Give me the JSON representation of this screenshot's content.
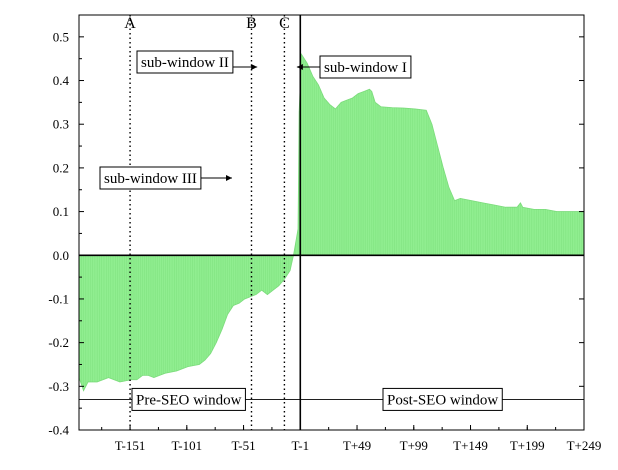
{
  "chart_data": {
    "type": "area",
    "title": "",
    "xlabel": "",
    "ylabel": "",
    "xlim": [
      -196,
      249
    ],
    "ylim": [
      -0.4,
      0.55
    ],
    "grid": false,
    "x_tick_labels": [
      {
        "x": -151,
        "label": "T-151"
      },
      {
        "x": -101,
        "label": "T-101"
      },
      {
        "x": -51,
        "label": "T-51"
      },
      {
        "x": -1,
        "label": "T-1"
      },
      {
        "x": 49,
        "label": "T+49"
      },
      {
        "x": 99,
        "label": "T+99"
      },
      {
        "x": 149,
        "label": "T+149"
      },
      {
        "x": 199,
        "label": "T+199"
      },
      {
        "x": 249,
        "label": "T+249"
      }
    ],
    "y_ticks": [
      -0.4,
      -0.3,
      -0.2,
      -0.1,
      0.0,
      0.1,
      0.2,
      0.3,
      0.4,
      0.5
    ],
    "y_tick_labels": [
      "-0.4",
      "-0.3",
      "-0.2",
      "-0.1",
      "0.0",
      "0.1",
      "0.2",
      "0.3",
      "0.4",
      "0.5"
    ],
    "fill_color": "#90ee90",
    "series_points": [
      [
        -196,
        -0.28
      ],
      [
        -192,
        -0.31
      ],
      [
        -188,
        -0.29
      ],
      [
        -180,
        -0.29
      ],
      [
        -170,
        -0.28
      ],
      [
        -160,
        -0.29
      ],
      [
        -150,
        -0.285
      ],
      [
        -145,
        -0.285
      ],
      [
        -140,
        -0.275
      ],
      [
        -135,
        -0.275
      ],
      [
        -130,
        -0.28
      ],
      [
        -125,
        -0.275
      ],
      [
        -120,
        -0.27
      ],
      [
        -110,
        -0.265
      ],
      [
        -100,
        -0.255
      ],
      [
        -90,
        -0.25
      ],
      [
        -85,
        -0.24
      ],
      [
        -80,
        -0.225
      ],
      [
        -75,
        -0.2
      ],
      [
        -70,
        -0.17
      ],
      [
        -65,
        -0.135
      ],
      [
        -60,
        -0.115
      ],
      [
        -55,
        -0.11
      ],
      [
        -50,
        -0.1
      ],
      [
        -45,
        -0.095
      ],
      [
        -40,
        -0.09
      ],
      [
        -35,
        -0.08
      ],
      [
        -30,
        -0.09
      ],
      [
        -25,
        -0.08
      ],
      [
        -20,
        -0.07
      ],
      [
        -15,
        -0.055
      ],
      [
        -10,
        -0.035
      ],
      [
        -7,
        0.0
      ],
      [
        -5,
        0.03
      ],
      [
        -3,
        0.06
      ],
      [
        -2,
        0.33
      ],
      [
        0,
        0.46
      ],
      [
        5,
        0.44
      ],
      [
        10,
        0.41
      ],
      [
        15,
        0.39
      ],
      [
        20,
        0.36
      ],
      [
        25,
        0.345
      ],
      [
        30,
        0.335
      ],
      [
        35,
        0.35
      ],
      [
        40,
        0.355
      ],
      [
        45,
        0.36
      ],
      [
        50,
        0.37
      ],
      [
        55,
        0.375
      ],
      [
        60,
        0.38
      ],
      [
        62,
        0.375
      ],
      [
        65,
        0.35
      ],
      [
        70,
        0.34
      ],
      [
        80,
        0.338
      ],
      [
        90,
        0.337
      ],
      [
        100,
        0.335
      ],
      [
        110,
        0.332
      ],
      [
        115,
        0.3
      ],
      [
        120,
        0.25
      ],
      [
        125,
        0.2
      ],
      [
        130,
        0.155
      ],
      [
        135,
        0.125
      ],
      [
        140,
        0.13
      ],
      [
        150,
        0.125
      ],
      [
        160,
        0.12
      ],
      [
        170,
        0.115
      ],
      [
        180,
        0.11
      ],
      [
        190,
        0.11
      ],
      [
        193,
        0.12
      ],
      [
        195,
        0.11
      ],
      [
        205,
        0.105
      ],
      [
        215,
        0.105
      ],
      [
        225,
        0.1
      ],
      [
        235,
        0.1
      ],
      [
        249,
        0.1
      ]
    ],
    "reference_lines": [
      {
        "x": -151,
        "label": "A",
        "style": "dotted"
      },
      {
        "x": -44,
        "label": "B",
        "style": "dotted"
      },
      {
        "x": -15,
        "label": "C",
        "style": "dotted"
      },
      {
        "x": -1,
        "label": "",
        "style": "solid"
      }
    ],
    "annotations": [
      {
        "text": "sub-window I",
        "arrow": "left"
      },
      {
        "text": "sub-window II",
        "arrow": "right"
      },
      {
        "text": "sub-window III",
        "arrow": "right"
      }
    ],
    "window_labels": [
      {
        "text": "Pre-SEO window",
        "y": -0.33
      },
      {
        "text": "Post-SEO window",
        "y": -0.33
      }
    ]
  }
}
